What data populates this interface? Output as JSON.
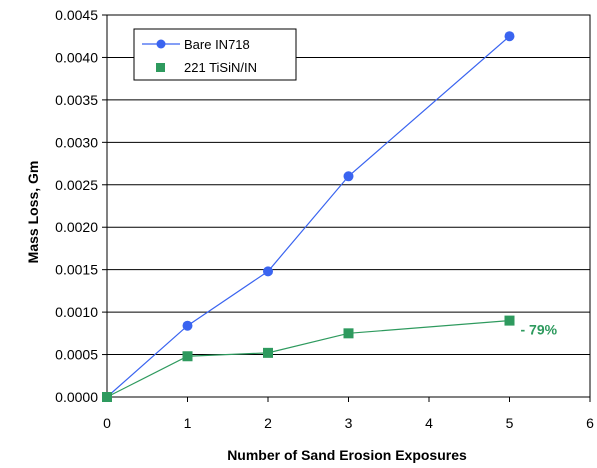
{
  "chart_data": {
    "type": "line",
    "xlabel": "Number of Sand Erosion Exposures",
    "ylabel": "Mass Loss, Gm",
    "xlim": [
      0,
      6
    ],
    "ylim": [
      0,
      0.0045
    ],
    "x_ticks": [
      "0",
      "1",
      "2",
      "3",
      "4",
      "5",
      "6"
    ],
    "y_ticks": [
      "0.0000",
      "0.0005",
      "0.0010",
      "0.0015",
      "0.0020",
      "0.0025",
      "0.0030",
      "0.0035",
      "0.0040",
      "0.0045"
    ],
    "grid": "horizontal",
    "legend_position": "top-left",
    "series": [
      {
        "name": "Bare IN718",
        "color": "#3a64f0",
        "marker": "circle",
        "x": [
          0,
          1,
          2,
          3,
          5
        ],
        "y": [
          0.0,
          0.00084,
          0.00148,
          0.0026,
          0.00425
        ]
      },
      {
        "name": "221 TiSiN/IN",
        "color": "#2e9a5e",
        "marker": "square",
        "x": [
          0,
          1,
          2,
          3,
          5
        ],
        "y": [
          0.0,
          0.00048,
          0.00052,
          0.00075,
          0.0009
        ]
      }
    ],
    "annotations": [
      {
        "text": "- 79%",
        "x": 5,
        "y": 0.0009,
        "color": "#2e9a5e"
      }
    ]
  }
}
